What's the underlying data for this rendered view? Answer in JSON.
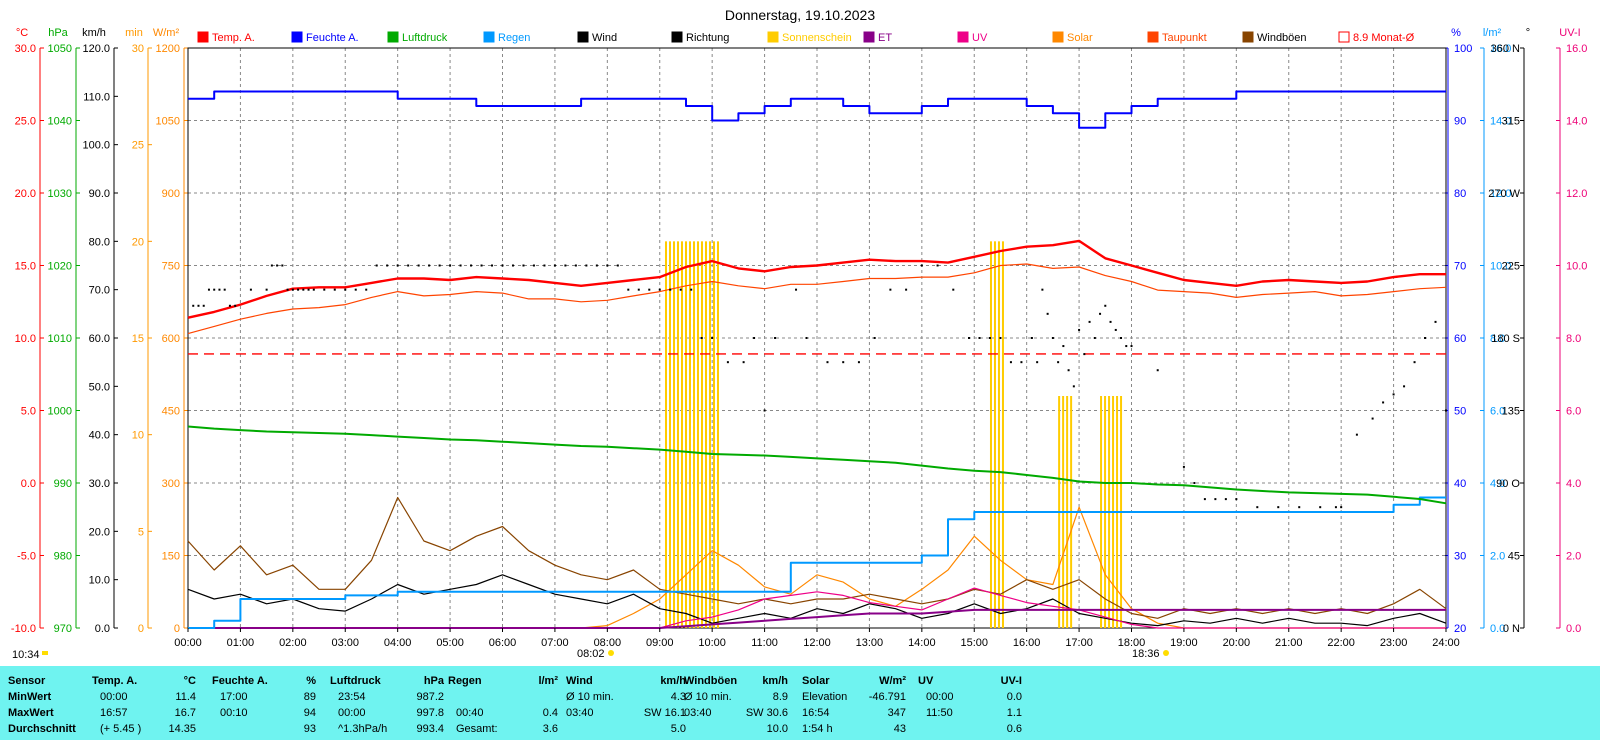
{
  "title": "Donnerstag, 19.10.2023",
  "colors": {
    "temp": "#ff0000",
    "hum": "#0000ff",
    "press": "#00aa00",
    "rain": "#0099ff",
    "wind": "#000000",
    "dir": "#000000",
    "sun": "#ffcc00",
    "et": "#880088",
    "uv": "#ee0088",
    "solar": "#ff8800",
    "dew": "#ff4400",
    "gust": "#884400",
    "avg": "#ff0000",
    "axisTemp": "#ff0000",
    "axisPress": "#00aa00",
    "axisWind": "#000000",
    "axisSun": "#ff9900",
    "axisSolar": "#ff8800",
    "axisHum": "#0000ff",
    "axisRain": "#0099ff",
    "axisDir": "#000000",
    "axisUV": "#ee0077",
    "panel": "#6ff3f0"
  },
  "axes": {
    "temp": {
      "unit": "°C",
      "ticks": [
        "30.0",
        "25.0",
        "20.0",
        "15.0",
        "10.0",
        "5.0",
        "0.0",
        "-5.0",
        "-10.0"
      ]
    },
    "press": {
      "unit": "hPa",
      "ticks": [
        "1050",
        "1040",
        "1030",
        "1020",
        "1010",
        "1000",
        "990",
        "980",
        "970"
      ]
    },
    "wind": {
      "unit": "km/h",
      "ticks": [
        "120.0",
        "110.0",
        "100.0",
        "90.0",
        "80.0",
        "70.0",
        "60.0",
        "50.0",
        "40.0",
        "30.0",
        "20.0",
        "10.0",
        "0.0"
      ]
    },
    "sun": {
      "unit": "min",
      "ticks": [
        "30",
        "25",
        "20",
        "15",
        "10",
        "5",
        "0"
      ]
    },
    "solar": {
      "unit": "W/m²",
      "ticks": [
        "1200",
        "1050",
        "900",
        "750",
        "600",
        "450",
        "300",
        "150",
        "0"
      ]
    },
    "hum": {
      "unit": "%",
      "ticks": [
        "100",
        "90",
        "80",
        "70",
        "60",
        "50",
        "40",
        "30",
        "20"
      ]
    },
    "rain": {
      "unit": "l/m²",
      "ticks": [
        "16.0",
        "14.0",
        "12.0",
        "10.0",
        "8.0",
        "6.0",
        "4.0",
        "2.0",
        "0.0"
      ]
    },
    "dir": {
      "unit": "°",
      "ticks": [
        "360 N",
        "315",
        "270 W",
        "225",
        "180 S",
        "135",
        "90 O",
        "45",
        "0 N"
      ]
    },
    "uv": {
      "unit": "UV-I",
      "ticks": [
        "16.0",
        "14.0",
        "12.0",
        "10.0",
        "8.0",
        "6.0",
        "4.0",
        "2.0",
        "0.0"
      ]
    }
  },
  "x_ticks": [
    "00:00",
    "01:00",
    "02:00",
    "03:00",
    "04:00",
    "05:00",
    "06:00",
    "07:00",
    "08:00",
    "09:00",
    "10:00",
    "11:00",
    "12:00",
    "13:00",
    "14:00",
    "15:00",
    "16:00",
    "17:00",
    "18:00",
    "19:00",
    "20:00",
    "21:00",
    "22:00",
    "23:00",
    "24:00"
  ],
  "legend": [
    "Temp. A.",
    "Feuchte A.",
    "Luftdruck",
    "Regen",
    "Wind",
    "Richtung",
    "Sonnenschein",
    "ET",
    "UV",
    "Solar",
    "Taupunkt",
    "Windböen",
    "8.9 Monat-Ø"
  ],
  "time_marks": {
    "now": "10:34",
    "sunrise": "08:02",
    "sunset": "18:36"
  },
  "chart_data": {
    "type": "line",
    "title": "Donnerstag, 19.10.2023",
    "x_hours": [
      0,
      0.5,
      1,
      1.5,
      2,
      2.5,
      3,
      3.5,
      4,
      4.5,
      5,
      5.5,
      6,
      6.5,
      7,
      7.5,
      8,
      8.5,
      9,
      9.5,
      10,
      10.5,
      11,
      11.5,
      12,
      12.5,
      13,
      13.5,
      14,
      14.5,
      15,
      15.5,
      16,
      16.5,
      17,
      17.5,
      18,
      18.5,
      19,
      19.5,
      20,
      20.5,
      21,
      21.5,
      22,
      22.5,
      23,
      23.5,
      24
    ],
    "series": [
      {
        "name": "Temp. A.",
        "axis": "temp",
        "values": [
          11.4,
          11.8,
          12.3,
          12.9,
          13.4,
          13.5,
          13.5,
          13.8,
          14.1,
          14.1,
          14.0,
          14.2,
          14.1,
          14.0,
          13.8,
          13.6,
          13.8,
          14.0,
          14.2,
          14.9,
          15.3,
          14.8,
          14.6,
          14.9,
          15.0,
          15.2,
          15.4,
          15.3,
          15.3,
          15.2,
          15.6,
          16.0,
          16.3,
          16.4,
          16.7,
          15.5,
          15.0,
          14.5,
          14.0,
          13.8,
          13.6,
          13.9,
          14.0,
          13.9,
          13.8,
          13.9,
          14.2,
          14.4,
          14.4
        ]
      },
      {
        "name": "Taupunkt",
        "axis": "temp",
        "values": [
          10.3,
          10.8,
          11.3,
          11.7,
          12.0,
          12.1,
          12.3,
          12.8,
          13.2,
          12.9,
          13.0,
          13.2,
          13.1,
          12.7,
          12.7,
          12.5,
          12.6,
          12.9,
          13.2,
          13.6,
          13.9,
          13.6,
          13.4,
          13.7,
          13.7,
          13.9,
          14.1,
          14.1,
          14.2,
          14.2,
          14.5,
          15.0,
          15.1,
          14.8,
          14.9,
          14.3,
          13.9,
          13.3,
          13.2,
          13.1,
          12.8,
          13.0,
          13.1,
          13.2,
          12.9,
          13.0,
          13.2,
          13.4,
          13.5
        ]
      },
      {
        "name": "Feuchte A.",
        "axis": "hum",
        "values": [
          93,
          94,
          94,
          94,
          94,
          94,
          94,
          94,
          93,
          93,
          93,
          92,
          92,
          92,
          92,
          93,
          93,
          93,
          93,
          92,
          90,
          91,
          92,
          93,
          93,
          92,
          91,
          91,
          92,
          93,
          93,
          93,
          92,
          91,
          89,
          91,
          92,
          93,
          93,
          93,
          94,
          94,
          94,
          94,
          94,
          94,
          94,
          94,
          94
        ]
      },
      {
        "name": "Luftdruck",
        "axis": "press",
        "values": [
          997.8,
          997.5,
          997.3,
          997.1,
          997.0,
          996.9,
          996.8,
          996.6,
          996.4,
          996.2,
          996.0,
          995.9,
          995.7,
          995.5,
          995.3,
          995.1,
          995.0,
          994.8,
          994.6,
          994.3,
          994.0,
          993.9,
          993.8,
          993.6,
          993.4,
          993.2,
          993.0,
          992.8,
          992.4,
          992.0,
          991.7,
          991.5,
          991.1,
          990.7,
          990.2,
          990.0,
          990.0,
          989.8,
          989.7,
          989.4,
          989.1,
          988.9,
          988.7,
          988.6,
          988.5,
          988.4,
          988.1,
          987.8,
          987.2
        ]
      },
      {
        "name": "Regen",
        "axis": "rain",
        "values": [
          0.0,
          0.2,
          0.8,
          0.8,
          0.8,
          0.8,
          0.9,
          0.9,
          1.0,
          1.0,
          1.0,
          1.0,
          1.0,
          1.0,
          1.0,
          1.0,
          1.0,
          1.0,
          1.0,
          1.0,
          1.0,
          1.0,
          1.0,
          1.8,
          1.8,
          1.8,
          1.8,
          1.8,
          2.0,
          3.0,
          3.2,
          3.2,
          3.2,
          3.2,
          3.2,
          3.2,
          3.2,
          3.2,
          3.2,
          3.2,
          3.2,
          3.2,
          3.2,
          3.2,
          3.2,
          3.2,
          3.4,
          3.6,
          3.6
        ]
      },
      {
        "name": "Wind",
        "axis": "wind",
        "values": [
          8.0,
          6.0,
          7.0,
          5.0,
          6.0,
          4.0,
          3.5,
          6.0,
          9.0,
          7.0,
          8.0,
          9.0,
          11.0,
          9.0,
          7.0,
          6.0,
          5.0,
          7.0,
          4.0,
          3.0,
          1.0,
          2.0,
          3.0,
          2.0,
          4.0,
          3.0,
          5.0,
          4.0,
          2.0,
          3.0,
          5.0,
          3.0,
          4.0,
          6.0,
          3.0,
          2.0,
          1.0,
          0.5,
          1.5,
          1.0,
          2.0,
          1.0,
          2.0,
          1.0,
          1.0,
          0.5,
          2.0,
          3.0,
          1.0
        ]
      },
      {
        "name": "Windböen",
        "axis": "wind",
        "values": [
          18.0,
          12.0,
          17.0,
          11.0,
          13.0,
          8.0,
          8.0,
          14.0,
          27.0,
          18.0,
          16.0,
          19.0,
          21.0,
          16.0,
          13.0,
          11.0,
          10.0,
          12.0,
          8.0,
          7.0,
          6.0,
          5.0,
          6.0,
          5.0,
          6.0,
          6.0,
          7.0,
          6.0,
          5.0,
          6.0,
          8.0,
          7.0,
          10.0,
          8.0,
          10.0,
          6.0,
          3.0,
          2.0,
          4.0,
          3.0,
          4.0,
          3.0,
          4.0,
          3.0,
          4.0,
          3.0,
          5.0,
          8.0,
          4.0
        ]
      },
      {
        "name": "Solar",
        "axis": "solar",
        "values": [
          0,
          0,
          0,
          0,
          0,
          0,
          0,
          0,
          0,
          0,
          0,
          0,
          0,
          0,
          0,
          0,
          5,
          30,
          60,
          110,
          160,
          130,
          85,
          70,
          110,
          95,
          60,
          45,
          80,
          120,
          190,
          140,
          100,
          90,
          250,
          110,
          40,
          10,
          0,
          0,
          0,
          0,
          0,
          0,
          0,
          0,
          0,
          0,
          0
        ]
      },
      {
        "name": "UV",
        "axis": "uv",
        "values": [
          0,
          0,
          0,
          0,
          0,
          0,
          0,
          0,
          0,
          0,
          0,
          0,
          0,
          0,
          0,
          0,
          0,
          0,
          0,
          0.2,
          0.3,
          0.5,
          0.8,
          0.9,
          1.0,
          0.9,
          0.7,
          0.6,
          0.5,
          0.8,
          1.1,
          0.9,
          0.7,
          0.6,
          0.5,
          0.3,
          0.1,
          0,
          0,
          0,
          0,
          0,
          0,
          0,
          0,
          0,
          0,
          0,
          0
        ]
      },
      {
        "name": "ET",
        "axis": "uv",
        "values": [
          0,
          0,
          0,
          0,
          0,
          0,
          0,
          0,
          0,
          0,
          0,
          0,
          0,
          0,
          0,
          0,
          0,
          0,
          0,
          0.05,
          0.1,
          0.15,
          0.2,
          0.25,
          0.3,
          0.35,
          0.4,
          0.4,
          0.4,
          0.45,
          0.5,
          0.5,
          0.5,
          0.5,
          0.5,
          0.5,
          0.5,
          0.5,
          0.5,
          0.5,
          0.5,
          0.5,
          0.5,
          0.5,
          0.5,
          0.5,
          0.5,
          0.5,
          0.5
        ]
      }
    ],
    "sunshine_bars": [
      {
        "x": [
          9.1,
          10.1
        ],
        "value": 20
      },
      {
        "x": [
          15.3,
          15.6
        ],
        "value": 20
      },
      {
        "x": [
          16.6,
          16.9
        ],
        "value": 12
      },
      {
        "x": [
          17.4,
          17.8
        ],
        "value": 12
      }
    ],
    "direction_deg": [
      [
        0.1,
        200
      ],
      [
        0.2,
        200
      ],
      [
        0.3,
        200
      ],
      [
        0.4,
        210
      ],
      [
        0.5,
        210
      ],
      [
        0.6,
        210
      ],
      [
        0.7,
        210
      ],
      [
        0.8,
        200
      ],
      [
        0.9,
        200
      ],
      [
        1.2,
        210
      ],
      [
        1.5,
        210
      ],
      [
        1.6,
        225
      ],
      [
        1.7,
        225
      ],
      [
        1.8,
        225
      ],
      [
        1.9,
        210
      ],
      [
        2.0,
        210
      ],
      [
        2.1,
        210
      ],
      [
        2.2,
        210
      ],
      [
        2.3,
        210
      ],
      [
        2.4,
        210
      ],
      [
        2.6,
        210
      ],
      [
        2.8,
        210
      ],
      [
        3.0,
        210
      ],
      [
        3.2,
        210
      ],
      [
        3.4,
        210
      ],
      [
        3.6,
        225
      ],
      [
        3.8,
        225
      ],
      [
        4.0,
        225
      ],
      [
        4.2,
        225
      ],
      [
        4.4,
        225
      ],
      [
        4.6,
        225
      ],
      [
        4.8,
        225
      ],
      [
        5.0,
        225
      ],
      [
        5.2,
        225
      ],
      [
        5.4,
        225
      ],
      [
        5.6,
        225
      ],
      [
        5.8,
        225
      ],
      [
        6.0,
        225
      ],
      [
        6.2,
        225
      ],
      [
        6.4,
        225
      ],
      [
        6.6,
        225
      ],
      [
        6.8,
        225
      ],
      [
        7.0,
        225
      ],
      [
        7.2,
        225
      ],
      [
        7.4,
        225
      ],
      [
        7.6,
        225
      ],
      [
        7.8,
        225
      ],
      [
        8.0,
        225
      ],
      [
        8.2,
        225
      ],
      [
        8.4,
        210
      ],
      [
        8.6,
        210
      ],
      [
        8.8,
        210
      ],
      [
        9.0,
        210
      ],
      [
        9.2,
        210
      ],
      [
        9.4,
        210
      ],
      [
        9.6,
        210
      ],
      [
        9.8,
        180
      ],
      [
        10.0,
        180
      ],
      [
        10.3,
        165
      ],
      [
        10.6,
        165
      ],
      [
        10.8,
        180
      ],
      [
        11.0,
        135
      ],
      [
        11.2,
        180
      ],
      [
        11.6,
        210
      ],
      [
        11.8,
        180
      ],
      [
        12.2,
        165
      ],
      [
        12.5,
        165
      ],
      [
        12.8,
        165
      ],
      [
        13.1,
        180
      ],
      [
        13.4,
        210
      ],
      [
        13.7,
        210
      ],
      [
        14.0,
        225
      ],
      [
        14.3,
        225
      ],
      [
        14.6,
        210
      ],
      [
        14.9,
        180
      ],
      [
        15.1,
        180
      ],
      [
        15.3,
        180
      ],
      [
        15.5,
        180
      ],
      [
        15.7,
        165
      ],
      [
        15.9,
        165
      ],
      [
        16.1,
        180
      ],
      [
        16.2,
        165
      ],
      [
        16.3,
        210
      ],
      [
        16.4,
        195
      ],
      [
        16.5,
        180
      ],
      [
        16.6,
        165
      ],
      [
        16.7,
        175
      ],
      [
        16.8,
        160
      ],
      [
        16.9,
        150
      ],
      [
        17.0,
        185
      ],
      [
        17.1,
        170
      ],
      [
        17.2,
        190
      ],
      [
        17.3,
        180
      ],
      [
        17.4,
        195
      ],
      [
        17.5,
        200
      ],
      [
        17.6,
        190
      ],
      [
        17.7,
        185
      ],
      [
        17.8,
        180
      ],
      [
        17.9,
        175
      ],
      [
        18.0,
        175
      ],
      [
        18.5,
        160
      ],
      [
        19.0,
        100
      ],
      [
        19.2,
        90
      ],
      [
        19.4,
        80
      ],
      [
        19.6,
        80
      ],
      [
        19.8,
        80
      ],
      [
        20.0,
        80
      ],
      [
        20.4,
        75
      ],
      [
        20.8,
        75
      ],
      [
        21.2,
        75
      ],
      [
        21.6,
        75
      ],
      [
        21.9,
        75
      ],
      [
        22.0,
        75
      ],
      [
        22.3,
        120
      ],
      [
        22.6,
        130
      ],
      [
        22.8,
        140
      ],
      [
        23.0,
        145
      ],
      [
        23.2,
        150
      ],
      [
        23.4,
        165
      ],
      [
        23.6,
        180
      ],
      [
        23.8,
        190
      ],
      [
        24.0,
        135
      ]
    ]
  },
  "stats": {
    "header": {
      "sensor": "Sensor",
      "temp": "Temp. A.",
      "temp_u": "°C",
      "hum": "Feuchte A.",
      "hum_u": "%",
      "press": "Luftdruck",
      "press_u": "hPa",
      "rain": "Regen",
      "rain_u": "l/m²",
      "wind": "Wind",
      "wind_u": "km/h",
      "gust": "Windböen",
      "gust_u": "km/h",
      "solar": "Solar",
      "solar_u": "W/m²",
      "uv": "UV",
      "uv_u": "UV-I"
    },
    "rows": [
      {
        "label": "MinWert",
        "temp_t": "00:00",
        "temp_v": "11.4",
        "hum_t": "17:00",
        "hum_v": "89",
        "press_t": "23:54",
        "press_v": "987.2",
        "rain_t": "",
        "rain_v": "",
        "wind_t": "Ø 10 min.",
        "wind_v": "4.3",
        "gust_t": "Ø 10 min.",
        "gust_v": "8.9",
        "solar_t": "Elevation",
        "solar_v": "-46.791",
        "uv_t": "00:00",
        "uv_v": "0.0"
      },
      {
        "label": "MaxWert",
        "temp_t": "16:57",
        "temp_v": "16.7",
        "hum_t": "00:10",
        "hum_v": "94",
        "press_t": "00:00",
        "press_v": "997.8",
        "rain_t": "00:40",
        "rain_v": "0.4",
        "wind_t": "03:40",
        "wind_v": "SW 16.1",
        "gust_t": "03:40",
        "gust_v": "SW 30.6",
        "solar_t": "16:54",
        "solar_v": "347",
        "uv_t": "11:50",
        "uv_v": "1.1"
      },
      {
        "label": "Durchschnitt",
        "temp_t": "(+ 5.45 )",
        "temp_v": "14.35",
        "hum_t": "",
        "hum_v": "93",
        "press_t": "^1.3hPa/h",
        "press_v": "993.4",
        "rain_t": "Gesamt:",
        "rain_v": "3.6",
        "wind_t": "",
        "wind_v": "5.0",
        "gust_t": "",
        "gust_v": "10.0",
        "solar_t": "1:54 h",
        "solar_v": "43",
        "uv_t": "",
        "uv_v": "0.6"
      }
    ]
  }
}
